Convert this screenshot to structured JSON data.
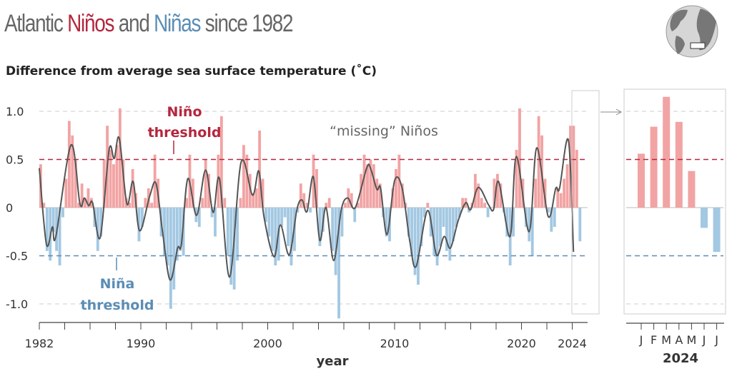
{
  "title": {
    "part1": "Atlantic ",
    "nino": "Niños",
    "part2": " and ",
    "nina": "Niñas",
    "part3": " since 1982"
  },
  "subtitle": "Difference from average sea surface temperature (˚C)",
  "colors": {
    "nino": "#b5263d",
    "nina": "#5b8db5",
    "bar_pos": "#f2a3a3",
    "bar_neg": "#a3c8e2",
    "curve": "#555555"
  },
  "chart_data": [
    {
      "type": "bar",
      "ylabel": "Difference from average sea surface temperature (˚C)",
      "xlabel": "year",
      "ylim": [
        -1.2,
        1.2
      ],
      "xlim": [
        1982,
        2024.6
      ],
      "yticks": [
        {
          "v": 1.0,
          "label": "1.0"
        },
        {
          "v": 0.5,
          "label": "0.5"
        },
        {
          "v": 0,
          "label": "0"
        },
        {
          "v": -0.5,
          "label": "-0.5"
        },
        {
          "v": -1.0,
          "label": "-1.0"
        }
      ],
      "xticks": [
        {
          "v": 1982,
          "label": "1982"
        },
        {
          "v": 1990,
          "label": "1990"
        },
        {
          "v": 2000,
          "label": "2000"
        },
        {
          "v": 2010,
          "label": "2010"
        },
        {
          "v": 2020,
          "label": "2020"
        },
        {
          "v": 2024,
          "label": "2024"
        }
      ],
      "thresholds": {
        "nino": 0.5,
        "nina": -0.5
      },
      "annotations": {
        "nino_line1": "Niño",
        "nino_line2": "threshold",
        "nina_line1": "Niña",
        "nina_line2": "threshold",
        "missing": "“missing” Niños"
      },
      "bars_start_year": 1982,
      "bars_per_year": 4,
      "bars": [
        0.45,
        0.05,
        -0.45,
        -0.55,
        -0.25,
        -0.45,
        -0.6,
        -0.1,
        0.3,
        0.9,
        0.75,
        0.5,
        0.05,
        0.25,
        0.1,
        0.2,
        0.1,
        -0.2,
        -0.45,
        -0.3,
        0.5,
        0.85,
        0.6,
        0.45,
        0.65,
        1.03,
        0.5,
        0.1,
        0.05,
        0.4,
        0.15,
        -0.35,
        -0.2,
        0.1,
        0.2,
        0.05,
        0.55,
        0.3,
        -0.3,
        -0.5,
        -0.6,
        -1.05,
        -0.85,
        -0.55,
        -0.45,
        -0.5,
        0.1,
        0.55,
        0.3,
        -0.15,
        -0.2,
        0.1,
        0.5,
        0.35,
        -0.1,
        -0.3,
        0.55,
        0.95,
        0.1,
        -0.5,
        -0.8,
        -0.85,
        -0.55,
        0.1,
        0.65,
        0.55,
        0.35,
        0.15,
        0.2,
        0.8,
        0.3,
        -0.15,
        -0.3,
        -0.45,
        -0.6,
        -0.55,
        -0.2,
        -0.1,
        -0.4,
        -0.6,
        -0.45,
        -0.05,
        0.25,
        0.15,
        0.05,
        -0.05,
        0.55,
        0.4,
        -0.4,
        -0.25,
        0.05,
        0.1,
        -0.45,
        -0.7,
        -1.15,
        -0.3,
        0.05,
        0.2,
        0.15,
        -0.15,
        0.05,
        0.35,
        0.55,
        0.45,
        0.5,
        0.45,
        0.3,
        0.25,
        -0.1,
        -0.3,
        -0.35,
        0.2,
        0.4,
        0.55,
        0.25,
        0.05,
        -0.3,
        -0.5,
        -0.7,
        -0.8,
        -0.4,
        -0.1,
        0.05,
        -0.3,
        -0.5,
        -0.6,
        -0.4,
        -0.2,
        -0.45,
        -0.55,
        -0.35,
        -0.2,
        -0.1,
        0.1,
        0.1,
        -0.05,
        0.05,
        0.35,
        0.25,
        0.1,
        0.05,
        -0.1,
        0.0,
        0.3,
        0.35,
        0.25,
        -0.05,
        -0.3,
        -0.6,
        -0.3,
        0.6,
        1.03,
        0.3,
        -0.2,
        -0.35,
        -0.5,
        0.3,
        0.95,
        0.75,
        0.3,
        -0.05,
        -0.25,
        -0.2,
        0.2,
        0.15,
        0.3,
        0.45,
        0.85,
        0.85,
        0.6,
        -0.35
      ],
      "smoothed": [
        [
          1982.0,
          0.41
        ],
        [
          1982.56,
          -0.38
        ],
        [
          1983.03,
          -0.2
        ],
        [
          1983.3,
          -0.3
        ],
        [
          1984.5,
          0.65
        ],
        [
          1985.2,
          0.04
        ],
        [
          1985.55,
          0.1
        ],
        [
          1985.9,
          0.02
        ],
        [
          1986.2,
          0.05
        ],
        [
          1986.8,
          -0.31
        ],
        [
          1987.5,
          0.6
        ],
        [
          1987.9,
          0.51
        ],
        [
          1988.3,
          0.72
        ],
        [
          1988.9,
          0.04
        ],
        [
          1989.4,
          0.27
        ],
        [
          1989.9,
          -0.24
        ],
        [
          1990.7,
          0.12
        ],
        [
          1991.2,
          0.25
        ],
        [
          1991.7,
          -0.24
        ],
        [
          1992.3,
          -0.75
        ],
        [
          1992.9,
          -0.42
        ],
        [
          1993.2,
          -0.38
        ],
        [
          1993.7,
          0.3
        ],
        [
          1994.4,
          -0.08
        ],
        [
          1995.1,
          0.39
        ],
        [
          1995.7,
          -0.05
        ],
        [
          1996.2,
          0.3
        ],
        [
          1997.0,
          -0.72
        ],
        [
          1997.9,
          0.47
        ],
        [
          1998.8,
          0.13
        ],
        [
          1999.3,
          0.38
        ],
        [
          1999.7,
          -0.09
        ],
        [
          2000.5,
          -0.51
        ],
        [
          2001.0,
          -0.18
        ],
        [
          2001.7,
          -0.49
        ],
        [
          2002.3,
          -0.02
        ],
        [
          2002.7,
          0.08
        ],
        [
          2003.1,
          -0.04
        ],
        [
          2003.6,
          0.32
        ],
        [
          2004.1,
          -0.34
        ],
        [
          2004.6,
          0.0
        ],
        [
          2005.2,
          -0.55
        ],
        [
          2005.8,
          -0.02
        ],
        [
          2006.3,
          0.1
        ],
        [
          2006.9,
          0.0
        ],
        [
          2007.8,
          0.41
        ],
        [
          2008.1,
          0.41
        ],
        [
          2008.6,
          0.19
        ],
        [
          2008.9,
          0.2
        ],
        [
          2009.4,
          -0.28
        ],
        [
          2010.0,
          0.28
        ],
        [
          2010.6,
          0.2
        ],
        [
          2011.2,
          -0.35
        ],
        [
          2011.7,
          -0.61
        ],
        [
          2012.6,
          -0.03
        ],
        [
          2013.3,
          -0.49
        ],
        [
          2013.9,
          -0.3
        ],
        [
          2014.4,
          -0.42
        ],
        [
          2015.0,
          -0.14
        ],
        [
          2015.6,
          0.05
        ],
        [
          2016.0,
          -0.02
        ],
        [
          2016.6,
          0.21
        ],
        [
          2017.4,
          0.03
        ],
        [
          2017.8,
          -0.02
        ],
        [
          2018.2,
          0.27
        ],
        [
          2019.1,
          -0.3
        ],
        [
          2019.6,
          0.53
        ],
        [
          2020.6,
          -0.25
        ],
        [
          2021.2,
          0.62
        ],
        [
          2022.1,
          -0.09
        ],
        [
          2022.7,
          0.2
        ],
        [
          2023.0,
          0.2
        ],
        [
          2023.7,
          0.7
        ],
        [
          2024.1,
          -0.46
        ]
      ]
    },
    {
      "type": "bar",
      "title": "2024",
      "categories": [
        "J",
        "F",
        "M",
        "A",
        "M",
        "J",
        "J"
      ],
      "values": [
        0.56,
        0.84,
        1.15,
        0.89,
        0.38,
        -0.21,
        -0.46
      ],
      "ylim": [
        -1.2,
        1.2
      ],
      "thresholds": {
        "nino": 0.5,
        "nina": -0.5
      }
    }
  ],
  "globe_icon": "globe-icon"
}
